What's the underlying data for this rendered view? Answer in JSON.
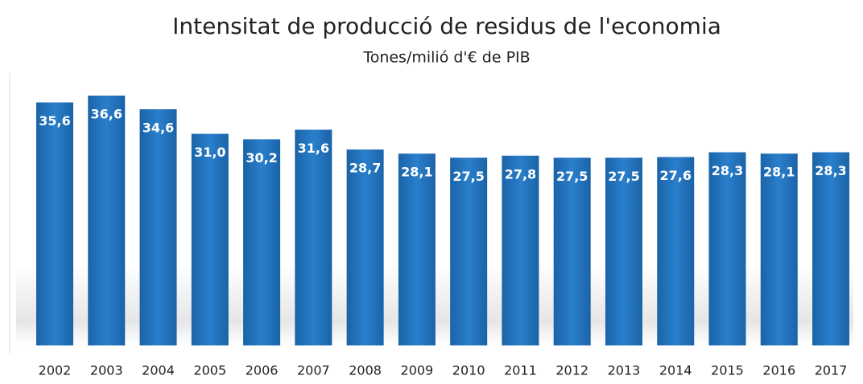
{
  "chart_data": {
    "type": "bar",
    "title": "Intensitat de producció de residus de l'economia",
    "subtitle": "Tones/milió d'€ de PIB",
    "categories": [
      "2002",
      "2003",
      "2004",
      "2005",
      "2006",
      "2007",
      "2008",
      "2009",
      "2010",
      "2011",
      "2012",
      "2013",
      "2014",
      "2015",
      "2016",
      "2017"
    ],
    "values": [
      35.6,
      36.6,
      34.6,
      31.0,
      30.2,
      31.6,
      28.7,
      28.1,
      27.5,
      27.8,
      27.5,
      27.5,
      27.6,
      28.3,
      28.1,
      28.3
    ],
    "value_labels": [
      "35,6",
      "36,6",
      "34,6",
      "31,0",
      "30,2",
      "31,6",
      "28,7",
      "28,1",
      "27,5",
      "27,8",
      "27,5",
      "27,5",
      "27,6",
      "28,3",
      "28,1",
      "28,3"
    ],
    "color": "#1f6db5"
  }
}
